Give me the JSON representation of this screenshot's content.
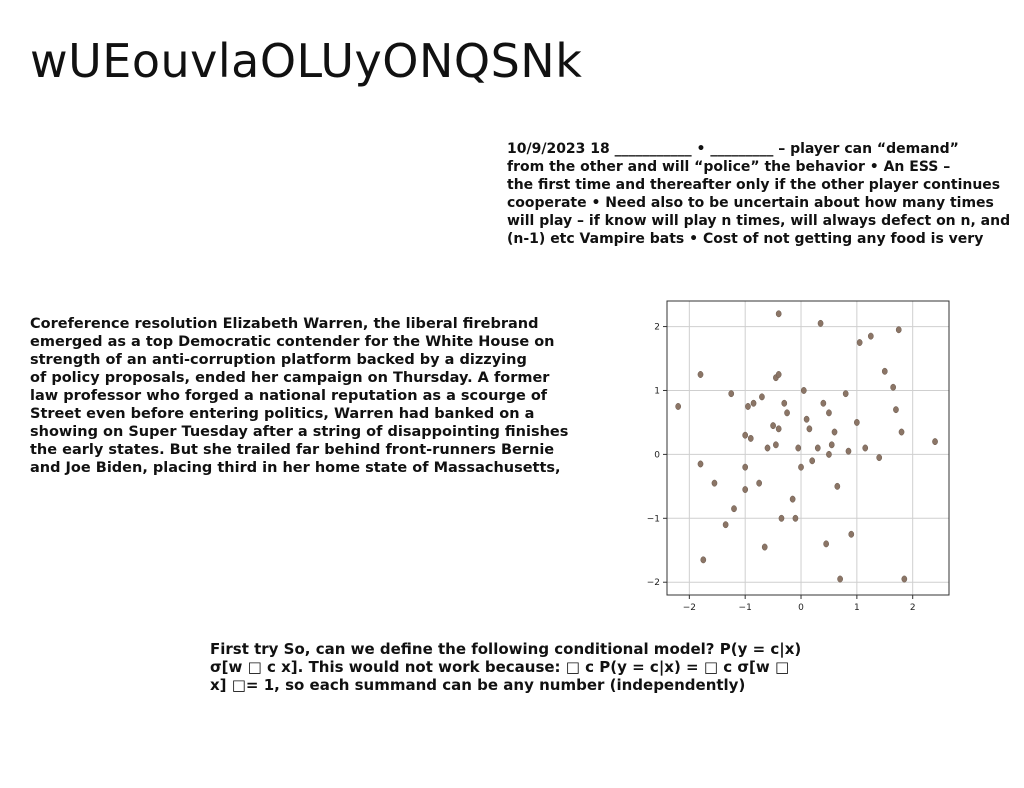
{
  "title": "wUEouvlaOLUyONQSNk",
  "notes": {
    "lines": [
      "10/9/2023 18 ___________ • _________ – player can “demand”",
      "from the other  and will “police” the behavior • An ESS –",
      "the first time and thereafter only if the other player continues",
      "cooperate • Need also to be uncertain about how many times",
      "will play – if know will play n times, will always defect on n, and",
      "(n-1) etc Vampire bats • Cost of not getting any food is very"
    ]
  },
  "article": {
    "lines": [
      "Coreference resolution Elizabeth Warren, the liberal firebrand",
      "emerged as a top Democratic contender for the White House on",
      "strength of an anti-corruption platform backed by a dizzying",
      "of policy proposals, ended her campaign on Thursday. A former",
      "law professor who forged a national reputation as a scourge of",
      "Street even before entering politics, Warren had banked on a",
      "showing on Super Tuesday after a string of disappointing finishes",
      "the early states. But she trailed far behind front-runners Bernie",
      "and Joe Biden, placing third in her home state of Massachusetts,"
    ]
  },
  "ml_note": {
    "lines": [
      "First try So, can we define the following conditional model? P(y = c|x)",
      "σ[w □ c x]. This would not work because: □ c P(y = c|x) = □ c σ[w □",
      "x] □= 1, so each summand can be any number (independently)"
    ]
  },
  "chart_data": {
    "type": "scatter",
    "title": "",
    "xlabel": "",
    "ylabel": "",
    "xlim": [
      -2.4,
      2.65
    ],
    "ylim": [
      -2.2,
      2.4
    ],
    "xticks": [
      "−2",
      "−1",
      "0",
      "1",
      "2"
    ],
    "yticks": [
      "−2",
      "−1",
      "0",
      "1",
      "2"
    ],
    "grid": true,
    "point_color": "#8b7566",
    "x": [
      -2.2,
      -1.8,
      -1.8,
      -1.75,
      -1.55,
      -1.35,
      -1.25,
      -1.2,
      -1.0,
      -1.0,
      -1.0,
      -0.95,
      -0.9,
      -0.85,
      -0.75,
      -0.7,
      -0.65,
      -0.6,
      -0.5,
      -0.45,
      -0.45,
      -0.4,
      -0.4,
      -0.4,
      -0.35,
      -0.3,
      -0.25,
      -0.15,
      -0.1,
      -0.05,
      0.0,
      0.05,
      0.1,
      0.15,
      0.2,
      0.3,
      0.35,
      0.4,
      0.45,
      0.5,
      0.5,
      0.55,
      0.6,
      0.65,
      0.7,
      0.8,
      0.85,
      0.9,
      1.0,
      1.05,
      1.15,
      1.25,
      1.4,
      1.5,
      1.65,
      1.7,
      1.75,
      1.8,
      1.85,
      2.4
    ],
    "y": [
      0.75,
      1.25,
      -0.15,
      -1.65,
      -0.45,
      -1.1,
      0.95,
      -0.85,
      0.3,
      -0.2,
      -0.55,
      0.75,
      0.25,
      0.8,
      -0.45,
      0.9,
      -1.45,
      0.1,
      0.45,
      1.2,
      0.15,
      1.25,
      2.2,
      0.4,
      -1.0,
      0.8,
      0.65,
      -0.7,
      -1.0,
      0.1,
      -0.2,
      1.0,
      0.55,
      0.4,
      -0.1,
      0.1,
      2.05,
      0.8,
      -1.4,
      0.0,
      0.65,
      0.15,
      0.35,
      -0.5,
      -1.95,
      0.95,
      0.05,
      -1.25,
      0.5,
      1.75,
      0.1,
      1.85,
      -0.05,
      1.3,
      1.05,
      0.7,
      1.95,
      0.35,
      -1.95,
      0.2
    ]
  }
}
